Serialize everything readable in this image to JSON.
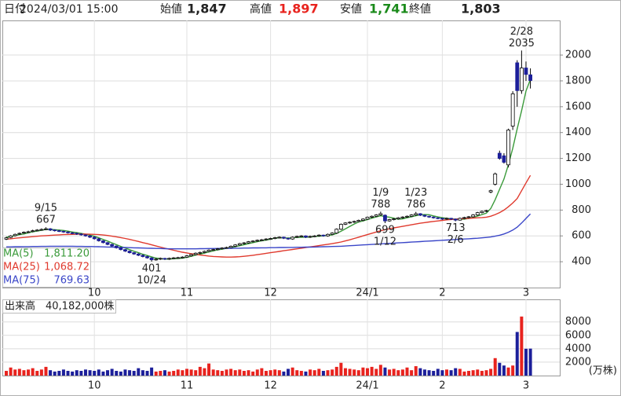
{
  "header": {
    "date_label": "日付",
    "datetime": "2024/03/01 15:00",
    "open_label": "始値",
    "open": "1,847",
    "high_label": "高値",
    "high": "1,897",
    "low_label": "安値",
    "low": "1,741",
    "close_label": "終値",
    "close": "1,803"
  },
  "chart_data": {
    "type": "candlestick",
    "categories": [
      null,
      null,
      null,
      null,
      null,
      null,
      null,
      null,
      null,
      null,
      null,
      null,
      null,
      null,
      null,
      null,
      null,
      null,
      null,
      null,
      "10",
      null,
      null,
      null,
      null,
      null,
      null,
      null,
      null,
      null,
      null,
      null,
      null,
      null,
      null,
      null,
      null,
      null,
      null,
      null,
      null,
      "11",
      null,
      null,
      null,
      null,
      null,
      null,
      null,
      null,
      null,
      null,
      null,
      null,
      null,
      null,
      null,
      null,
      null,
      null,
      "12",
      null,
      null,
      null,
      null,
      null,
      null,
      null,
      null,
      null,
      null,
      null,
      null,
      null,
      null,
      null,
      null,
      null,
      null,
      null,
      null,
      null,
      "24/1",
      null,
      null,
      null,
      null,
      null,
      null,
      null,
      null,
      null,
      null,
      null,
      null,
      null,
      null,
      null,
      null,
      "2",
      null,
      null,
      null,
      null,
      null,
      null,
      null,
      null,
      null,
      null,
      null,
      null,
      null,
      null,
      null,
      null,
      null,
      null,
      "3"
    ],
    "ohlc": [
      [
        575,
        592,
        568,
        585
      ],
      [
        588,
        606,
        582,
        600
      ],
      [
        602,
        618,
        596,
        612
      ],
      [
        615,
        626,
        608,
        620
      ],
      [
        622,
        634,
        616,
        628
      ],
      [
        630,
        640,
        622,
        632
      ],
      [
        634,
        648,
        628,
        640
      ],
      [
        642,
        652,
        636,
        645
      ],
      [
        648,
        658,
        640,
        650
      ],
      [
        650,
        667,
        644,
        655
      ],
      [
        655,
        660,
        638,
        645
      ],
      [
        646,
        650,
        634,
        640
      ],
      [
        640,
        646,
        630,
        636
      ],
      [
        636,
        640,
        624,
        630
      ],
      [
        630,
        636,
        618,
        625
      ],
      [
        624,
        630,
        614,
        620
      ],
      [
        620,
        626,
        608,
        614
      ],
      [
        614,
        620,
        602,
        608
      ],
      [
        608,
        612,
        594,
        600
      ],
      [
        600,
        606,
        584,
        590
      ],
      [
        590,
        596,
        572,
        578
      ],
      [
        578,
        584,
        556,
        562
      ],
      [
        562,
        566,
        542,
        548
      ],
      [
        548,
        552,
        528,
        534
      ],
      [
        534,
        540,
        516,
        522
      ],
      [
        522,
        526,
        502,
        508
      ],
      [
        508,
        514,
        488,
        494
      ],
      [
        494,
        498,
        476,
        482
      ],
      [
        482,
        486,
        464,
        470
      ],
      [
        470,
        474,
        454,
        460
      ],
      [
        460,
        466,
        444,
        450
      ],
      [
        450,
        456,
        434,
        440
      ],
      [
        440,
        446,
        424,
        430
      ],
      [
        430,
        434,
        401,
        415
      ],
      [
        414,
        428,
        408,
        420
      ],
      [
        420,
        432,
        414,
        426
      ],
      [
        426,
        430,
        414,
        420
      ],
      [
        420,
        432,
        414,
        426
      ],
      [
        426,
        436,
        420,
        430
      ],
      [
        430,
        438,
        424,
        432
      ],
      [
        432,
        442,
        426,
        436
      ],
      [
        436,
        452,
        430,
        446
      ],
      [
        446,
        462,
        440,
        456
      ],
      [
        456,
        472,
        450,
        466
      ],
      [
        466,
        478,
        460,
        472
      ],
      [
        472,
        486,
        466,
        480
      ],
      [
        480,
        496,
        474,
        490
      ],
      [
        490,
        500,
        484,
        494
      ],
      [
        494,
        506,
        488,
        500
      ],
      [
        500,
        512,
        494,
        506
      ],
      [
        506,
        516,
        500,
        510
      ],
      [
        510,
        526,
        504,
        520
      ],
      [
        520,
        536,
        514,
        530
      ],
      [
        530,
        546,
        524,
        540
      ],
      [
        540,
        552,
        534,
        546
      ],
      [
        546,
        560,
        540,
        555
      ],
      [
        555,
        566,
        550,
        560
      ],
      [
        560,
        572,
        554,
        566
      ],
      [
        566,
        576,
        560,
        570
      ],
      [
        570,
        582,
        564,
        576
      ],
      [
        576,
        586,
        570,
        580
      ],
      [
        580,
        592,
        574,
        586
      ],
      [
        586,
        596,
        580,
        590
      ],
      [
        590,
        594,
        576,
        582
      ],
      [
        582,
        586,
        570,
        576
      ],
      [
        576,
        596,
        570,
        590
      ],
      [
        590,
        602,
        584,
        596
      ],
      [
        596,
        606,
        590,
        600
      ],
      [
        600,
        604,
        584,
        590
      ],
      [
        590,
        602,
        584,
        596
      ],
      [
        596,
        606,
        590,
        600
      ],
      [
        600,
        612,
        594,
        606
      ],
      [
        606,
        610,
        594,
        600
      ],
      [
        600,
        618,
        594,
        612
      ],
      [
        612,
        628,
        606,
        622
      ],
      [
        622,
        658,
        616,
        652
      ],
      [
        652,
        696,
        646,
        690
      ],
      [
        690,
        706,
        684,
        700
      ],
      [
        700,
        712,
        694,
        706
      ],
      [
        706,
        718,
        700,
        712
      ],
      [
        712,
        726,
        706,
        720
      ],
      [
        720,
        736,
        714,
        730
      ],
      [
        730,
        750,
        724,
        745
      ],
      [
        745,
        758,
        738,
        752
      ],
      [
        752,
        768,
        746,
        762
      ],
      [
        762,
        788,
        756,
        772
      ],
      [
        760,
        766,
        699,
        716
      ],
      [
        716,
        732,
        710,
        726
      ],
      [
        726,
        738,
        720,
        732
      ],
      [
        732,
        746,
        726,
        740
      ],
      [
        740,
        752,
        734,
        746
      ],
      [
        746,
        758,
        740,
        752
      ],
      [
        752,
        768,
        746,
        762
      ],
      [
        762,
        786,
        756,
        772
      ],
      [
        772,
        776,
        754,
        760
      ],
      [
        760,
        764,
        746,
        752
      ],
      [
        752,
        756,
        740,
        746
      ],
      [
        746,
        750,
        734,
        740
      ],
      [
        740,
        744,
        730,
        736
      ],
      [
        736,
        740,
        724,
        730
      ],
      [
        730,
        742,
        724,
        736
      ],
      [
        736,
        740,
        724,
        730
      ],
      [
        730,
        734,
        713,
        722
      ],
      [
        722,
        742,
        718,
        736
      ],
      [
        736,
        748,
        730,
        742
      ],
      [
        742,
        754,
        736,
        748
      ],
      [
        748,
        768,
        742,
        762
      ],
      [
        762,
        786,
        756,
        780
      ],
      [
        780,
        796,
        774,
        790
      ],
      [
        790,
        802,
        784,
        796
      ],
      [
        940,
        958,
        930,
        950
      ],
      [
        1000,
        1090,
        990,
        1080
      ],
      [
        1240,
        1260,
        1190,
        1200
      ],
      [
        1220,
        1240,
        1160,
        1170
      ],
      [
        1150,
        1430,
        1130,
        1420
      ],
      [
        1450,
        1720,
        1420,
        1700
      ],
      [
        1940,
        1960,
        1600,
        1725
      ],
      [
        1725,
        2035,
        1700,
        1900
      ],
      [
        1900,
        1950,
        1800,
        1850
      ],
      [
        1847,
        1897,
        1741,
        1803
      ]
    ],
    "colors": {
      "up": "#ffffff",
      "down": "#1c1f9a",
      "wick": "#000000",
      "volume_up": "#e8231e",
      "volume_down": "#1c1f9a"
    },
    "ylim": [
      200,
      2268
    ],
    "yticks": [
      400,
      600,
      800,
      1000,
      1200,
      1400,
      1600,
      1800,
      2000
    ],
    "grid": true,
    "moving_averages": [
      {
        "name": "MA(5)",
        "color": "#3a9a3a",
        "latest_label": "1,811.20",
        "values": [
          590,
          595,
          602,
          610,
          615,
          624,
          632,
          638,
          644,
          650,
          650,
          648,
          645,
          642,
          637,
          630,
          625,
          619,
          613,
          606,
          597,
          585,
          572,
          560,
          546,
          532,
          519,
          506,
          493,
          481,
          470,
          458,
          448,
          438,
          428,
          424,
          421,
          421,
          423,
          425,
          428,
          434,
          442,
          451,
          459,
          467,
          476,
          484,
          492,
          498,
          504,
          510,
          516,
          524,
          532,
          540,
          548,
          555,
          562,
          568,
          574,
          583,
          586,
          585,
          583,
          585,
          588,
          590,
          590,
          591,
          596,
          598,
          600,
          603,
          608,
          619,
          637,
          655,
          674,
          692,
          708,
          716,
          726,
          737,
          747,
          756,
          749,
          745,
          737,
          729,
          732,
          741,
          748,
          756,
          764,
          765,
          764,
          755,
          747,
          741,
          735,
          732,
          729,
          729,
          730,
          736,
          744,
          754,
          765,
          776,
          812,
          880,
          960,
          1040,
          1150,
          1280,
          1430,
          1570,
          1722,
          1811.2
        ]
      },
      {
        "name": "MA(25)",
        "color": "#e03a2e",
        "latest_label": "1,068.72",
        "values": [
          575,
          578,
          582,
          585,
          588,
          591,
          594,
          597,
          600,
          602,
          604,
          606,
          608,
          610,
          611,
          612,
          613,
          614,
          614,
          613,
          612,
          610,
          607,
          603,
          598,
          593,
          587,
          580,
          573,
          565,
          557,
          548,
          540,
          531,
          522,
          513,
          505,
          497,
          489,
          481,
          474,
          468,
          462,
          457,
          452,
          448,
          444,
          441,
          439,
          437,
          436,
          436,
          437,
          439,
          442,
          446,
          450,
          455,
          460,
          465,
          470,
          475,
          480,
          485,
          490,
          495,
          500,
          505,
          510,
          515,
          520,
          525,
          530,
          535,
          540,
          546,
          553,
          561,
          570,
          580,
          590,
          600,
          610,
          620,
          630,
          640,
          648,
          655,
          662,
          668,
          674,
          680,
          686,
          692,
          698,
          703,
          708,
          712,
          716,
          720,
          724,
          727,
          730,
          732,
          734,
          736,
          738,
          740,
          742,
          745,
          752,
          765,
          780,
          800,
          825,
          855,
          890,
          950,
          1010,
          1068.72
        ]
      },
      {
        "name": "MA(75)",
        "color": "#3a46c8",
        "latest_label": "769.63",
        "values": [
          515,
          515,
          516,
          516,
          517,
          517,
          518,
          518,
          519,
          519,
          520,
          520,
          520,
          520,
          520,
          520,
          519,
          519,
          518,
          518,
          517,
          516,
          515,
          514,
          513,
          512,
          511,
          510,
          509,
          508,
          507,
          506,
          505,
          504,
          503,
          502,
          501,
          500,
          500,
          500,
          500,
          500,
          500,
          500,
          501,
          501,
          502,
          502,
          503,
          503,
          504,
          504,
          505,
          505,
          506,
          506,
          507,
          507,
          508,
          508,
          509,
          509,
          510,
          510,
          511,
          511,
          512,
          512,
          513,
          513,
          514,
          515,
          516,
          517,
          518,
          519,
          520,
          522,
          524,
          526,
          528,
          530,
          532,
          534,
          536,
          538,
          540,
          542,
          544,
          546,
          548,
          550,
          552,
          554,
          556,
          558,
          560,
          562,
          564,
          566,
          568,
          570,
          572,
          574,
          576,
          578,
          580,
          582,
          585,
          588,
          592,
          598,
          605,
          615,
          628,
          645,
          668,
          700,
          735,
          769.63
        ]
      }
    ],
    "annotations": [
      {
        "date": "9/15",
        "value": 667
      },
      {
        "date": "10/24",
        "value": 401
      },
      {
        "date": "1/9",
        "value": 788
      },
      {
        "date": "1/12",
        "value": 699
      },
      {
        "date": "1/23",
        "value": 786
      },
      {
        "date": "2/6",
        "value": 713
      },
      {
        "date": "2/28",
        "value": 2035
      }
    ],
    "volume": {
      "label": "出来高",
      "total": "40,182,000株",
      "unit": "(万株)",
      "ylim": [
        0,
        11360
      ],
      "yticks": [
        2000,
        4000,
        6000,
        8000
      ],
      "values": [
        700,
        1200,
        900,
        1000,
        800,
        900,
        1100,
        700,
        900,
        1300,
        800,
        600,
        700,
        900,
        700,
        600,
        800,
        700,
        900,
        800,
        700,
        900,
        600,
        800,
        1000,
        700,
        600,
        900,
        800,
        700,
        1100,
        800,
        700,
        1200,
        600,
        700,
        800,
        600,
        700,
        900,
        800,
        1000,
        900,
        800,
        1300,
        1100,
        1800,
        900,
        800,
        700,
        900,
        1000,
        800,
        900,
        700,
        800,
        600,
        900,
        1100,
        700,
        800,
        900,
        800,
        600,
        1000,
        1200,
        800,
        700,
        600,
        900,
        800,
        1000,
        700,
        800,
        900,
        1300,
        1900,
        1100,
        1000,
        900,
        800,
        1200,
        1100,
        1300,
        1000,
        1600,
        1200,
        900,
        1000,
        800,
        900,
        1200,
        800,
        1400,
        1100,
        900,
        800,
        700,
        1000,
        800,
        900,
        800,
        1100,
        1000,
        600,
        700,
        800,
        900,
        700,
        800,
        1000,
        2600,
        1900,
        1500,
        1200,
        1500,
        6500,
        8800,
        4000,
        4018.2
      ]
    }
  }
}
